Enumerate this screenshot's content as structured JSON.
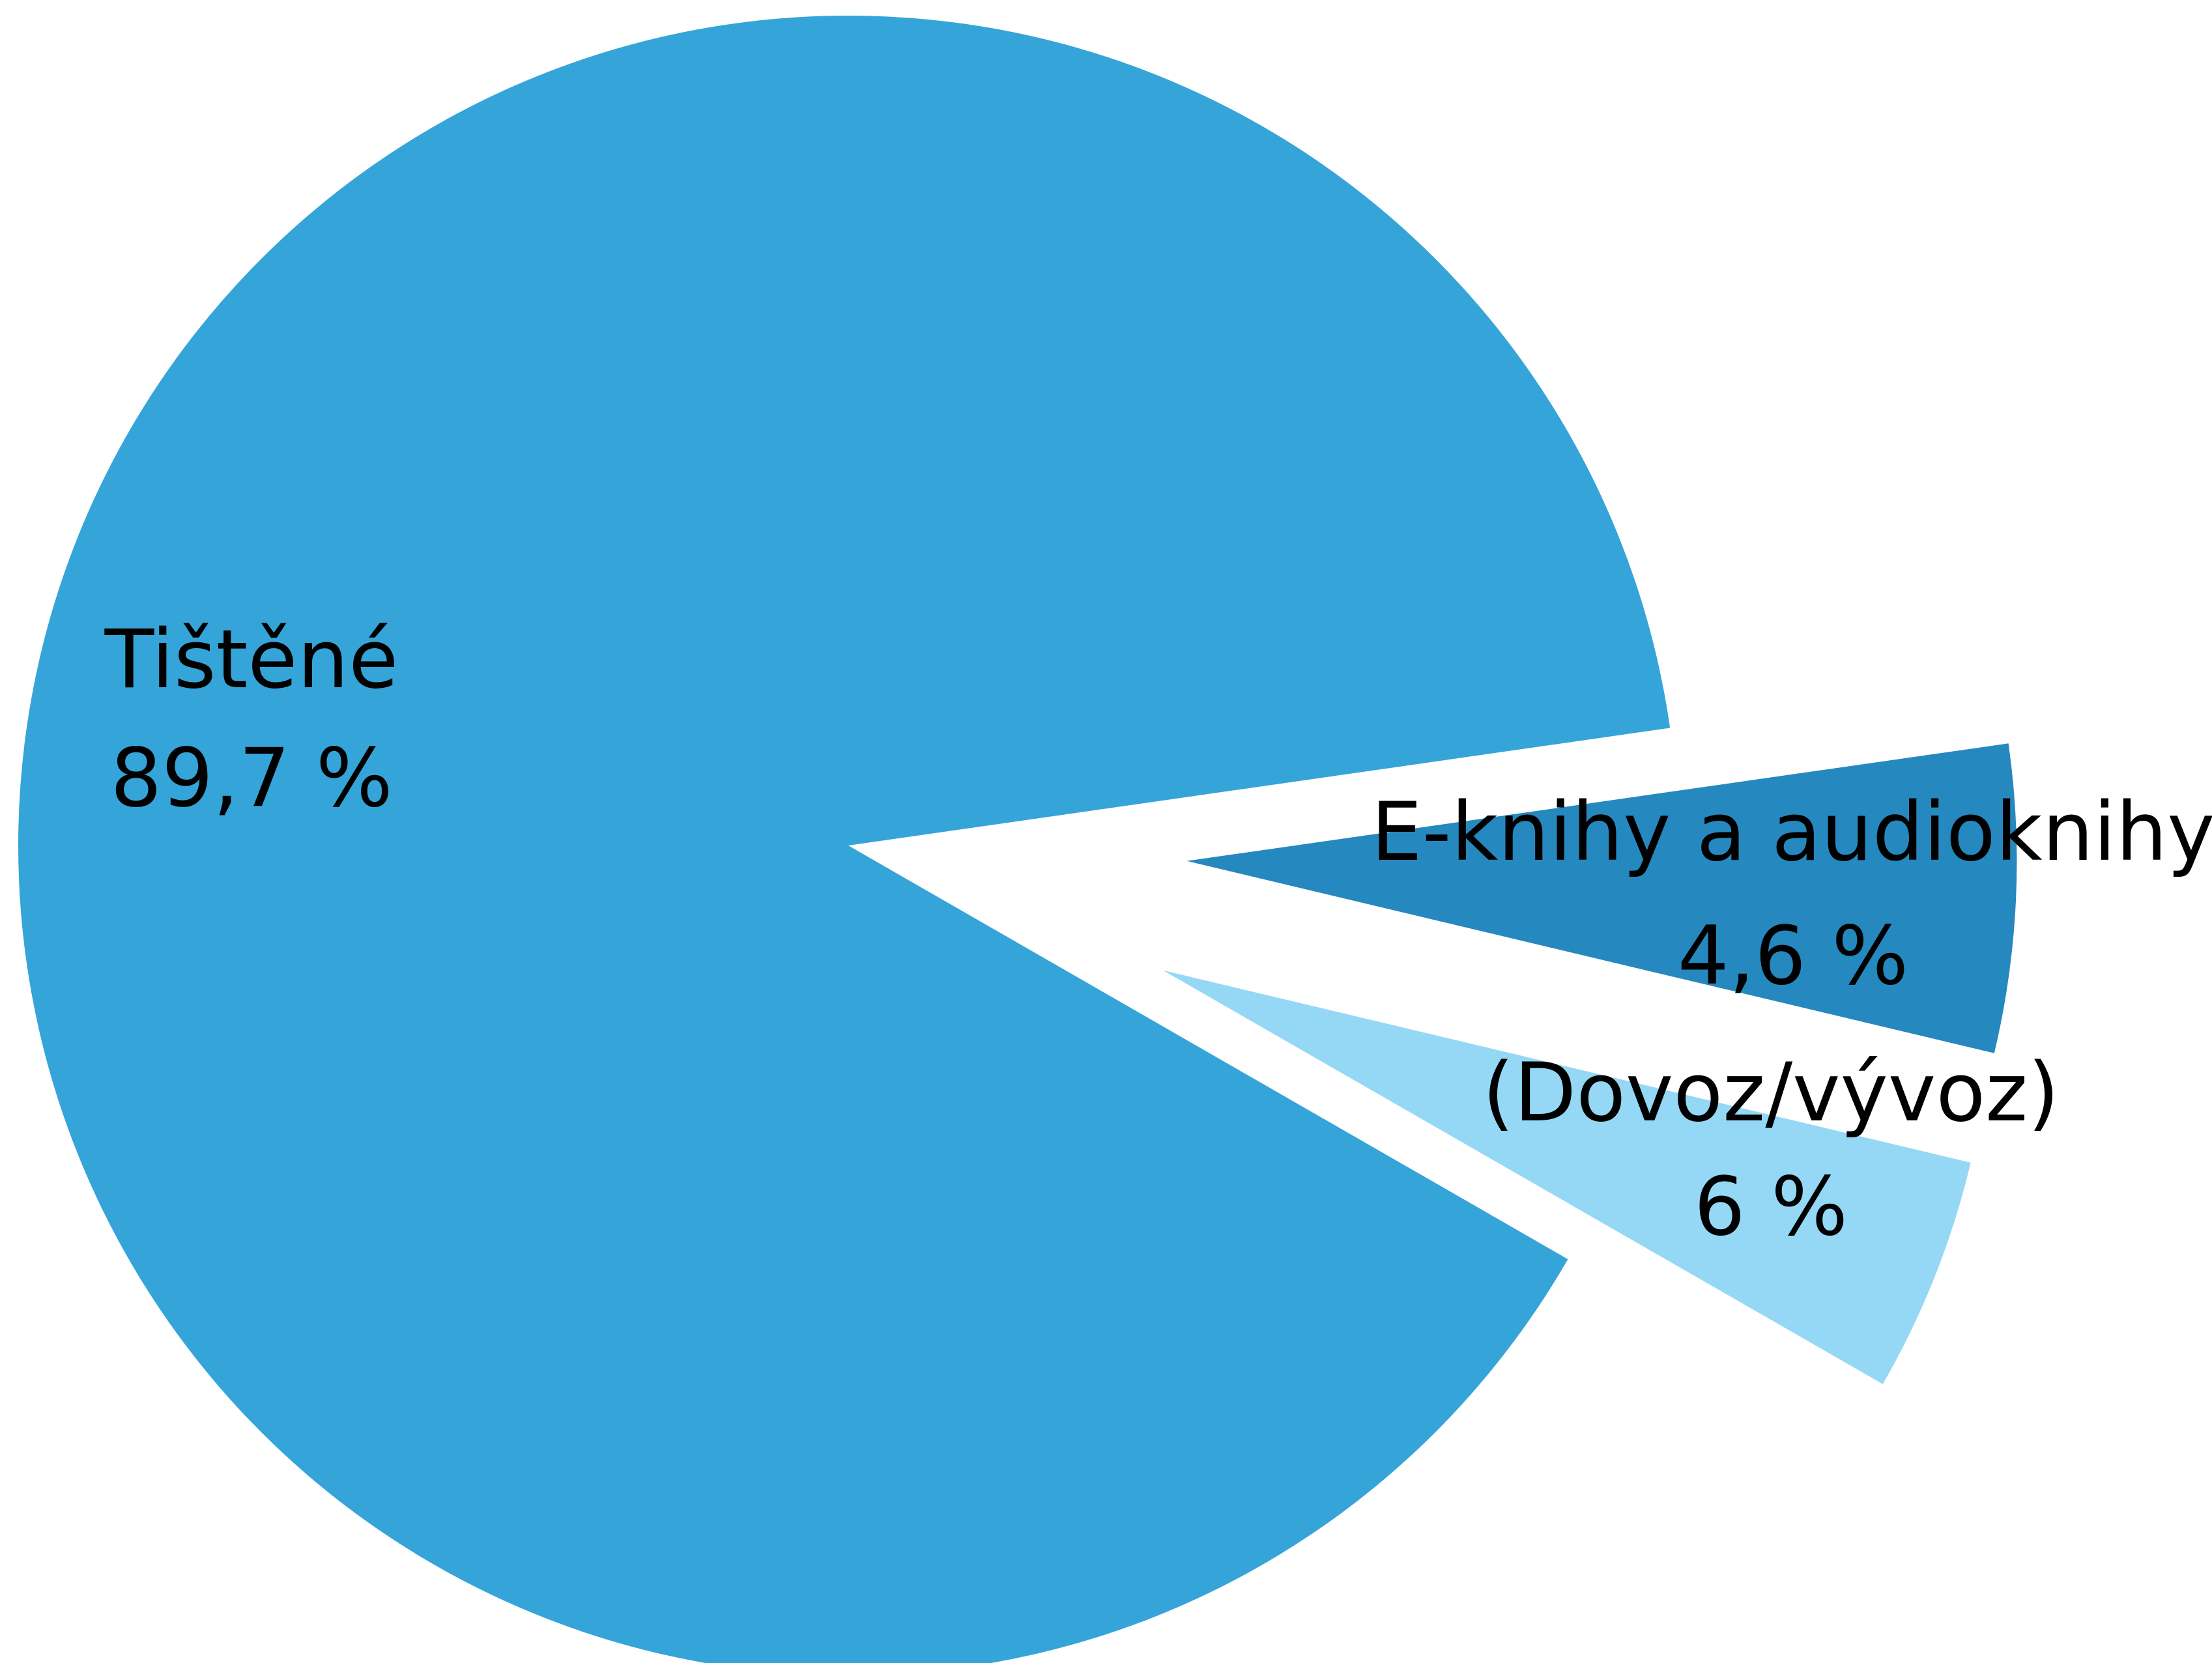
{
  "chart_data": {
    "type": "pie",
    "slices": [
      {
        "name": "Tištěné",
        "value_label": "89,7 %",
        "value": 89.7,
        "color": "#35a4d9"
      },
      {
        "name": "E-knihy a audioknihy",
        "value_label": "4,6 %",
        "value": 4.6,
        "color": "#95d8f5"
      },
      {
        "name": "(Dovoz/vývoz)",
        "value_label": "6 %",
        "value": 6,
        "color": "#2588bf"
      }
    ],
    "exploded": [
      "E-knihy a audioknihy",
      "(Dovoz/vývoz)"
    ]
  }
}
